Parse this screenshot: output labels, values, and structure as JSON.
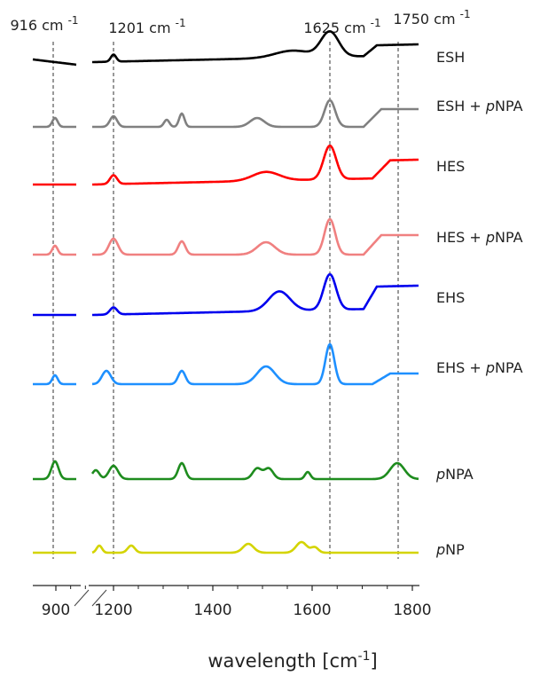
{
  "chart_data": {
    "type": "line",
    "title": "",
    "xlabel_main": "wavelength [cm",
    "xlabel_sup": "-1",
    "xlabel_end": "]",
    "x_ticks": [
      "900",
      "1200",
      "1400",
      "1600",
      "1800"
    ],
    "x_tick_values": [
      900,
      1200,
      1400,
      1600,
      1800
    ],
    "broken_axis": {
      "left_segment": [
        870,
        1050
      ],
      "right_segment": [
        1150,
        1810
      ]
    },
    "marker_lines": [
      {
        "value": 916,
        "label": "916 cm",
        "sup": "-1"
      },
      {
        "value": 1201,
        "label": "1201 cm",
        "sup": "-1"
      },
      {
        "value": 1625,
        "label": "1625 cm",
        "sup": "-1"
      },
      {
        "value": 1750,
        "label": "1750 cm",
        "sup": "-1"
      }
    ],
    "series": [
      {
        "label_pre": "",
        "label_it": "",
        "label_post": "ESH",
        "color": "#000000",
        "baseline": [
          [
            870,
            0
          ],
          [
            1050,
            0
          ],
          [
            1150,
            0
          ],
          [
            1180,
            0
          ],
          [
            1300,
            0
          ],
          [
            1450,
            0
          ],
          [
            1560,
            0
          ],
          [
            1625,
            0
          ],
          [
            1700,
            0
          ],
          [
            1810,
            0
          ]
        ]
      },
      {
        "label_pre": "ESH + ",
        "label_it": "p",
        "label_post": "NPA",
        "color": "#808080"
      },
      {
        "label_pre": "",
        "label_it": "",
        "label_post": "HES",
        "color": "#ff0000"
      },
      {
        "label_pre": "HES + ",
        "label_it": "p",
        "label_post": "NPA",
        "color": "#f08080"
      },
      {
        "label_pre": "",
        "label_it": "",
        "label_post": "EHS",
        "color": "#0000ee"
      },
      {
        "label_pre": "EHS + ",
        "label_it": "p",
        "label_post": "NPA",
        "color": "#1e90ff"
      },
      {
        "label_pre": "",
        "label_it": "p",
        "label_post": "NPA",
        "color": "#1e8c1e"
      },
      {
        "label_pre": "",
        "label_it": "p",
        "label_post": "NP",
        "color": "#d4d400"
      }
    ],
    "grid": false,
    "legend": "right-inline"
  }
}
